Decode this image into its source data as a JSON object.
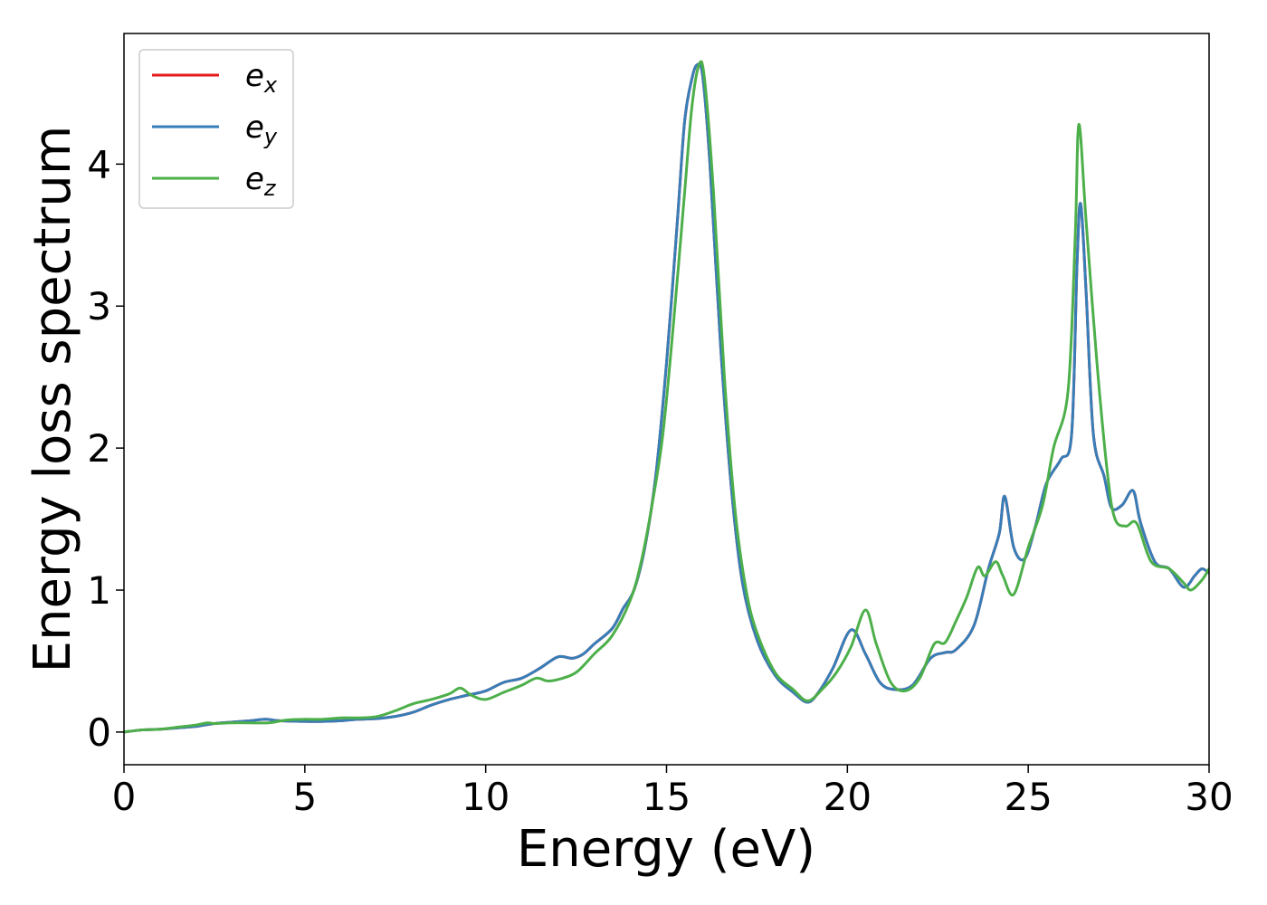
{
  "chart_data": {
    "type": "line",
    "title": "",
    "xlabel": "Energy (eV)",
    "ylabel": "Energy loss spectrum",
    "xlim": [
      0,
      30
    ],
    "ylim": [
      -0.23,
      4.92
    ],
    "xticks": [
      0,
      5,
      10,
      15,
      20,
      25,
      30
    ],
    "xtick_labels": [
      "0",
      "5",
      "10",
      "15",
      "20",
      "25",
      "30"
    ],
    "yticks": [
      0,
      1,
      2,
      3,
      4
    ],
    "ytick_labels": [
      "0",
      "1",
      "2",
      "3",
      "4"
    ],
    "grid": false,
    "legend_position": "top-left",
    "series": [
      {
        "name": "e_x",
        "legend_base": "e",
        "legend_sub": "x",
        "color": "#e41a1c",
        "points": [
          [
            0,
            0
          ],
          [
            0.5,
            0.015
          ],
          [
            1,
            0.02
          ],
          [
            1.5,
            0.03
          ],
          [
            2,
            0.04
          ],
          [
            2.5,
            0.06
          ],
          [
            3,
            0.07
          ],
          [
            3.5,
            0.08
          ],
          [
            3.9,
            0.09
          ],
          [
            4.3,
            0.08
          ],
          [
            5,
            0.075
          ],
          [
            5.5,
            0.075
          ],
          [
            6,
            0.08
          ],
          [
            6.5,
            0.09
          ],
          [
            7,
            0.095
          ],
          [
            7.5,
            0.11
          ],
          [
            8,
            0.14
          ],
          [
            8.5,
            0.19
          ],
          [
            9,
            0.23
          ],
          [
            9.5,
            0.26
          ],
          [
            10,
            0.29
          ],
          [
            10.5,
            0.35
          ],
          [
            11,
            0.38
          ],
          [
            11.5,
            0.45
          ],
          [
            12,
            0.53
          ],
          [
            12.4,
            0.52
          ],
          [
            12.7,
            0.55
          ],
          [
            13,
            0.62
          ],
          [
            13.5,
            0.73
          ],
          [
            13.8,
            0.87
          ],
          [
            14.1,
            1.0
          ],
          [
            14.4,
            1.3
          ],
          [
            14.7,
            1.8
          ],
          [
            15.0,
            2.6
          ],
          [
            15.3,
            3.6
          ],
          [
            15.5,
            4.3
          ],
          [
            15.7,
            4.6
          ],
          [
            15.85,
            4.7
          ],
          [
            16.0,
            4.62
          ],
          [
            16.2,
            4.0
          ],
          [
            16.5,
            2.7
          ],
          [
            16.8,
            1.7
          ],
          [
            17.1,
            1.05
          ],
          [
            17.5,
            0.65
          ],
          [
            18.0,
            0.4
          ],
          [
            18.5,
            0.28
          ],
          [
            18.9,
            0.21
          ],
          [
            19.2,
            0.28
          ],
          [
            19.6,
            0.45
          ],
          [
            20.1,
            0.72
          ],
          [
            20.5,
            0.55
          ],
          [
            20.9,
            0.35
          ],
          [
            21.3,
            0.3
          ],
          [
            21.8,
            0.33
          ],
          [
            22.3,
            0.52
          ],
          [
            22.7,
            0.56
          ],
          [
            23.0,
            0.58
          ],
          [
            23.5,
            0.75
          ],
          [
            23.9,
            1.15
          ],
          [
            24.2,
            1.4
          ],
          [
            24.35,
            1.66
          ],
          [
            24.6,
            1.3
          ],
          [
            24.9,
            1.22
          ],
          [
            25.2,
            1.45
          ],
          [
            25.5,
            1.75
          ],
          [
            25.9,
            1.92
          ],
          [
            26.2,
            2.1
          ],
          [
            26.35,
            3.3
          ],
          [
            26.45,
            3.72
          ],
          [
            26.6,
            3.1
          ],
          [
            26.8,
            2.1
          ],
          [
            27.1,
            1.8
          ],
          [
            27.3,
            1.58
          ],
          [
            27.6,
            1.6
          ],
          [
            27.9,
            1.7
          ],
          [
            28.1,
            1.48
          ],
          [
            28.5,
            1.2
          ],
          [
            28.9,
            1.15
          ],
          [
            29.3,
            1.02
          ],
          [
            29.6,
            1.1
          ],
          [
            29.8,
            1.15
          ],
          [
            30,
            1.12
          ]
        ]
      },
      {
        "name": "e_y",
        "legend_base": "e",
        "legend_sub": "y",
        "color": "#377eb8",
        "points": [
          [
            0,
            0
          ],
          [
            0.5,
            0.015
          ],
          [
            1,
            0.02
          ],
          [
            1.5,
            0.03
          ],
          [
            2,
            0.04
          ],
          [
            2.5,
            0.06
          ],
          [
            3,
            0.07
          ],
          [
            3.5,
            0.08
          ],
          [
            3.9,
            0.09
          ],
          [
            4.3,
            0.08
          ],
          [
            5,
            0.075
          ],
          [
            5.5,
            0.075
          ],
          [
            6,
            0.08
          ],
          [
            6.5,
            0.09
          ],
          [
            7,
            0.095
          ],
          [
            7.5,
            0.11
          ],
          [
            8,
            0.14
          ],
          [
            8.5,
            0.19
          ],
          [
            9,
            0.23
          ],
          [
            9.5,
            0.26
          ],
          [
            10,
            0.29
          ],
          [
            10.5,
            0.35
          ],
          [
            11,
            0.38
          ],
          [
            11.5,
            0.45
          ],
          [
            12,
            0.53
          ],
          [
            12.4,
            0.52
          ],
          [
            12.7,
            0.55
          ],
          [
            13,
            0.62
          ],
          [
            13.5,
            0.73
          ],
          [
            13.8,
            0.87
          ],
          [
            14.1,
            1.0
          ],
          [
            14.4,
            1.3
          ],
          [
            14.7,
            1.8
          ],
          [
            15.0,
            2.6
          ],
          [
            15.3,
            3.6
          ],
          [
            15.5,
            4.3
          ],
          [
            15.7,
            4.6
          ],
          [
            15.85,
            4.7
          ],
          [
            16.0,
            4.62
          ],
          [
            16.2,
            4.0
          ],
          [
            16.5,
            2.7
          ],
          [
            16.8,
            1.7
          ],
          [
            17.1,
            1.05
          ],
          [
            17.5,
            0.65
          ],
          [
            18.0,
            0.4
          ],
          [
            18.5,
            0.28
          ],
          [
            18.9,
            0.21
          ],
          [
            19.2,
            0.28
          ],
          [
            19.6,
            0.45
          ],
          [
            20.1,
            0.72
          ],
          [
            20.5,
            0.55
          ],
          [
            20.9,
            0.35
          ],
          [
            21.3,
            0.3
          ],
          [
            21.8,
            0.33
          ],
          [
            22.3,
            0.52
          ],
          [
            22.7,
            0.56
          ],
          [
            23.0,
            0.58
          ],
          [
            23.5,
            0.75
          ],
          [
            23.9,
            1.15
          ],
          [
            24.2,
            1.4
          ],
          [
            24.35,
            1.66
          ],
          [
            24.6,
            1.3
          ],
          [
            24.9,
            1.22
          ],
          [
            25.2,
            1.45
          ],
          [
            25.5,
            1.75
          ],
          [
            25.9,
            1.92
          ],
          [
            26.2,
            2.1
          ],
          [
            26.35,
            3.3
          ],
          [
            26.45,
            3.72
          ],
          [
            26.6,
            3.1
          ],
          [
            26.8,
            2.1
          ],
          [
            27.1,
            1.8
          ],
          [
            27.3,
            1.58
          ],
          [
            27.6,
            1.6
          ],
          [
            27.9,
            1.7
          ],
          [
            28.1,
            1.48
          ],
          [
            28.5,
            1.2
          ],
          [
            28.9,
            1.15
          ],
          [
            29.3,
            1.02
          ],
          [
            29.6,
            1.1
          ],
          [
            29.8,
            1.15
          ],
          [
            30,
            1.12
          ]
        ]
      },
      {
        "name": "e_z",
        "legend_base": "e",
        "legend_sub": "z",
        "color": "#4daf4a",
        "points": [
          [
            0,
            0
          ],
          [
            0.5,
            0.015
          ],
          [
            1,
            0.02
          ],
          [
            1.5,
            0.035
          ],
          [
            2,
            0.05
          ],
          [
            2.3,
            0.065
          ],
          [
            2.5,
            0.06
          ],
          [
            3,
            0.065
          ],
          [
            3.5,
            0.065
          ],
          [
            4,
            0.065
          ],
          [
            4.5,
            0.085
          ],
          [
            5,
            0.09
          ],
          [
            5.5,
            0.09
          ],
          [
            6,
            0.1
          ],
          [
            6.5,
            0.1
          ],
          [
            7,
            0.11
          ],
          [
            7.5,
            0.15
          ],
          [
            8,
            0.2
          ],
          [
            8.5,
            0.23
          ],
          [
            9,
            0.27
          ],
          [
            9.3,
            0.31
          ],
          [
            9.6,
            0.26
          ],
          [
            10,
            0.23
          ],
          [
            10.5,
            0.28
          ],
          [
            11,
            0.33
          ],
          [
            11.4,
            0.38
          ],
          [
            11.7,
            0.36
          ],
          [
            12,
            0.37
          ],
          [
            12.5,
            0.42
          ],
          [
            13,
            0.55
          ],
          [
            13.5,
            0.68
          ],
          [
            14,
            0.93
          ],
          [
            14.3,
            1.2
          ],
          [
            14.6,
            1.6
          ],
          [
            14.9,
            2.1
          ],
          [
            15.2,
            2.9
          ],
          [
            15.5,
            3.8
          ],
          [
            15.7,
            4.4
          ],
          [
            15.9,
            4.7
          ],
          [
            16.05,
            4.6
          ],
          [
            16.3,
            3.8
          ],
          [
            16.6,
            2.5
          ],
          [
            16.9,
            1.55
          ],
          [
            17.2,
            1.0
          ],
          [
            17.5,
            0.7
          ],
          [
            18.0,
            0.42
          ],
          [
            18.5,
            0.3
          ],
          [
            18.9,
            0.22
          ],
          [
            19.3,
            0.3
          ],
          [
            19.7,
            0.42
          ],
          [
            20.1,
            0.6
          ],
          [
            20.5,
            0.86
          ],
          [
            20.8,
            0.62
          ],
          [
            21.2,
            0.35
          ],
          [
            21.6,
            0.29
          ],
          [
            22.0,
            0.38
          ],
          [
            22.4,
            0.62
          ],
          [
            22.7,
            0.63
          ],
          [
            23.0,
            0.78
          ],
          [
            23.3,
            0.95
          ],
          [
            23.6,
            1.16
          ],
          [
            23.8,
            1.1
          ],
          [
            24.1,
            1.2
          ],
          [
            24.3,
            1.1
          ],
          [
            24.6,
            0.97
          ],
          [
            25.0,
            1.3
          ],
          [
            25.4,
            1.6
          ],
          [
            25.7,
            2.0
          ],
          [
            26.1,
            2.4
          ],
          [
            26.3,
            3.5
          ],
          [
            26.4,
            4.28
          ],
          [
            26.6,
            3.6
          ],
          [
            26.9,
            2.6
          ],
          [
            27.2,
            1.8
          ],
          [
            27.4,
            1.5
          ],
          [
            27.7,
            1.45
          ],
          [
            28.0,
            1.47
          ],
          [
            28.4,
            1.2
          ],
          [
            28.9,
            1.15
          ],
          [
            29.3,
            1.05
          ],
          [
            29.5,
            1.0
          ],
          [
            29.8,
            1.07
          ],
          [
            30,
            1.15
          ]
        ]
      }
    ]
  }
}
